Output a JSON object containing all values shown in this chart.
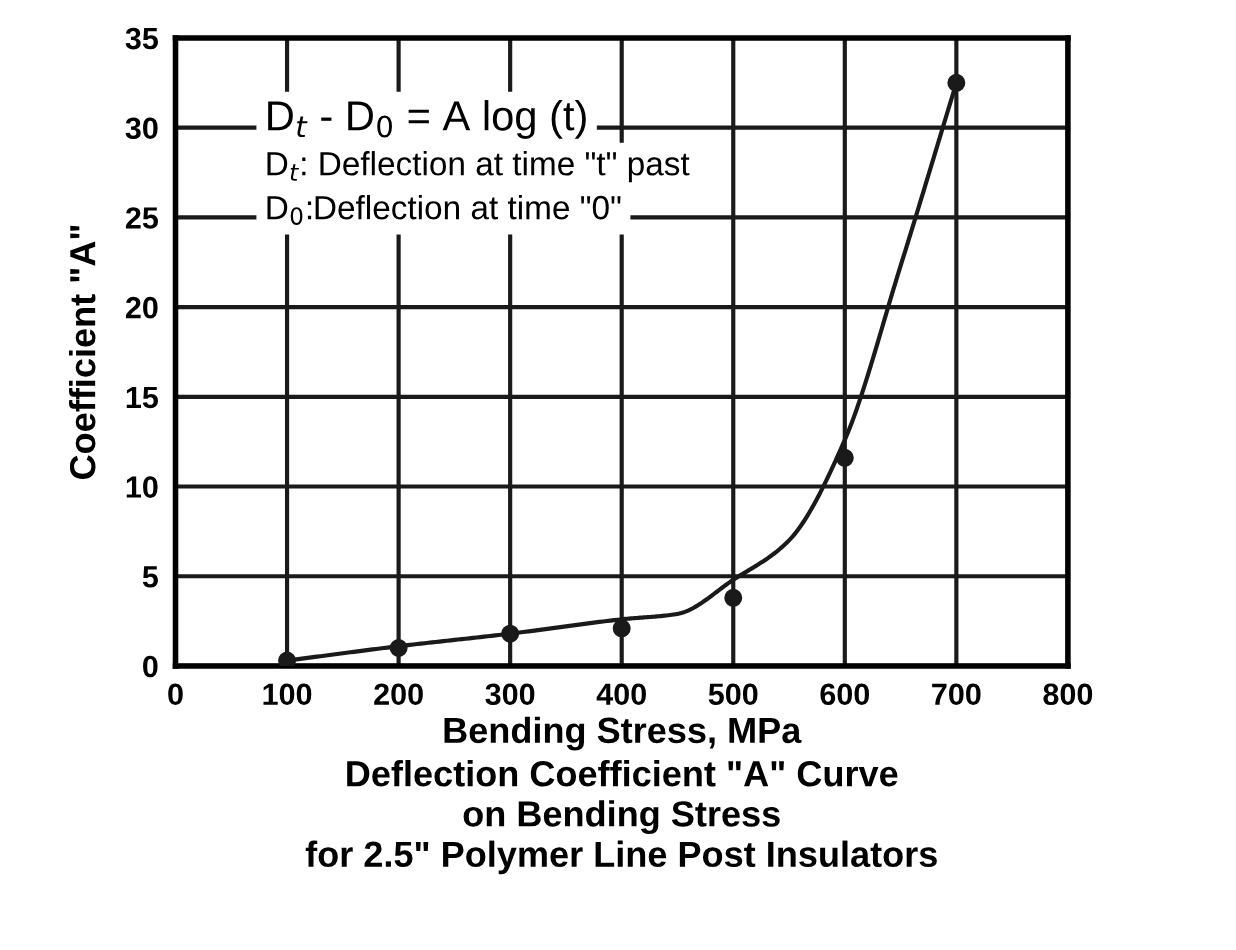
{
  "chart_data": {
    "type": "scatter",
    "title": "Deflection Coefficient \"A\" Curve\non Bending Stress\nfor 2.5\" Polymer Line Post Insulators",
    "xlabel": "Bending Stress, MPa",
    "ylabel": "Coefficient \"A\"",
    "series": [
      {
        "color": "#1a1a1a",
        "marker": "circle",
        "x": [
          100,
          200,
          300,
          400,
          500,
          600,
          700
        ],
        "values": [
          0.3,
          1.0,
          1.8,
          2.1,
          3.8,
          11.6,
          32.5
        ]
      },
      {
        "type": "line",
        "color": "#1a1a1a",
        "marker": "none",
        "x": [
          100,
          200,
          300,
          400,
          450,
          500,
          550,
          600,
          650,
          700
        ],
        "values": [
          0.3,
          1.1,
          1.8,
          2.6,
          2.9,
          4.8,
          7.0,
          12.6,
          22.3,
          32.5
        ]
      }
    ],
    "annotations": [
      "D$_{t}$ - D$_{0}$ = A log (t)",
      "D$_{t}$: Deflection at time \"t\" past",
      "D$_{0}$:Deflection at time \"0\""
    ],
    "xlim": [
      0,
      800
    ],
    "xticks": [
      0,
      100,
      200,
      300,
      400,
      500,
      600,
      700,
      800
    ],
    "ylim": [
      0,
      35
    ],
    "yticks": [
      0,
      5,
      10,
      15,
      20,
      25,
      30,
      35
    ],
    "grid": true
  }
}
